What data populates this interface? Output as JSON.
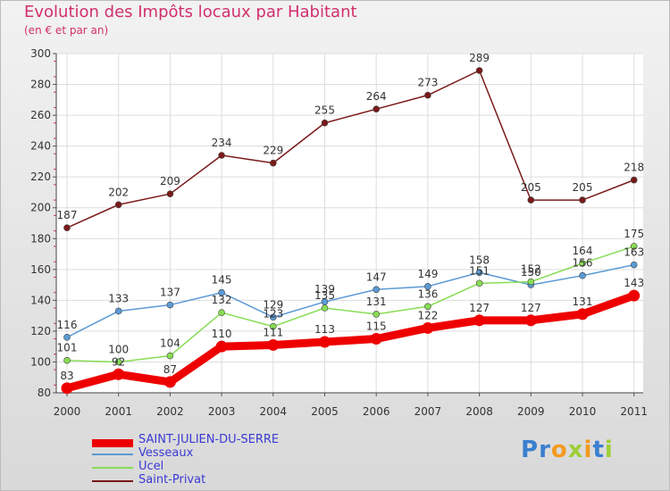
{
  "chart_data": {
    "type": "line",
    "title": "Evolution des Impôts locaux par Habitant",
    "subtitle": "(en € et par an)",
    "categories": [
      "2000",
      "2001",
      "2002",
      "2003",
      "2004",
      "2005",
      "2006",
      "2007",
      "2008",
      "2009",
      "2010",
      "2011"
    ],
    "ylim": [
      80,
      300
    ],
    "yticks": [
      80,
      100,
      120,
      140,
      160,
      180,
      200,
      220,
      240,
      260,
      280,
      300
    ],
    "series": [
      {
        "name": "SAINT-JULIEN-DU-SERRE",
        "color": "#ee0000",
        "values": [
          83,
          92,
          87,
          110,
          111,
          113,
          115,
          122,
          127,
          127,
          131,
          143
        ]
      },
      {
        "name": "Vesseaux",
        "color": "#5b9ad5",
        "values": [
          116,
          133,
          137,
          145,
          129,
          139,
          147,
          149,
          158,
          150,
          156,
          163
        ]
      },
      {
        "name": "Ucel",
        "color": "#88dd55",
        "values": [
          101,
          100,
          104,
          132,
          123,
          135,
          131,
          136,
          151,
          152,
          164,
          175
        ]
      },
      {
        "name": "Saint-Privat",
        "color": "#7a1a1a",
        "values": [
          187,
          202,
          209,
          234,
          229,
          255,
          264,
          273,
          289,
          205,
          205,
          218
        ]
      }
    ]
  },
  "logo": {
    "text": "Proxiti"
  }
}
